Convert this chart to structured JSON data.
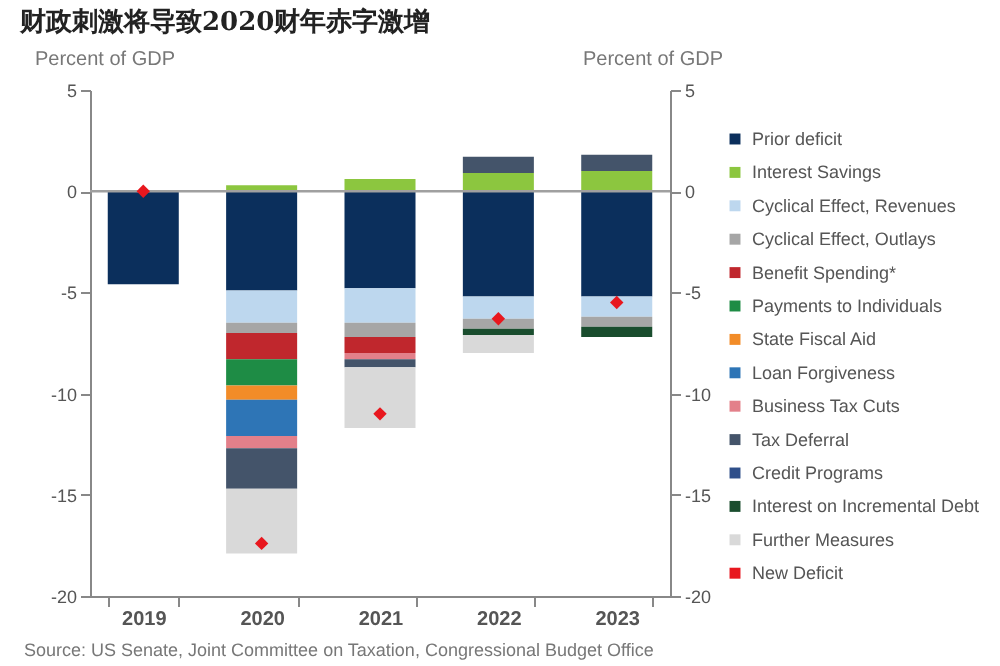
{
  "chart_data": {
    "type": "bar",
    "title": "财政刺激将导致2020财年赤字激增",
    "stacked": true,
    "categories": [
      "2019",
      "2020",
      "2021",
      "2022",
      "2023"
    ],
    "series": [
      {
        "name": "Prior deficit",
        "color": "#0b2f5c",
        "values": [
          -4.6,
          -4.9,
          -4.8,
          -5.2,
          -5.2
        ]
      },
      {
        "name": "Interest Savings",
        "color": "#8cc63f",
        "values": [
          null,
          0.3,
          0.6,
          0.9,
          1.0
        ]
      },
      {
        "name": "Cyclical Effect, Revenues",
        "color": "#bdd7ee",
        "values": [
          null,
          -1.6,
          -1.7,
          -1.1,
          -1.0
        ]
      },
      {
        "name": "Cyclical Effect, Outlays",
        "color": "#a6a6a6",
        "values": [
          null,
          -0.5,
          -0.7,
          -0.5,
          -0.5
        ]
      },
      {
        "name": "Benefit Spending*",
        "color": "#c0272d",
        "values": [
          null,
          -1.3,
          -0.8,
          null,
          null
        ]
      },
      {
        "name": "Payments to Individuals",
        "color": "#1e8c45",
        "values": [
          null,
          -1.3,
          null,
          null,
          null
        ]
      },
      {
        "name": "State Fiscal Aid",
        "color": "#f28c28",
        "values": [
          null,
          -0.7,
          null,
          null,
          null
        ]
      },
      {
        "name": "Loan Forgiveness",
        "color": "#2e75b6",
        "values": [
          null,
          -1.8,
          null,
          null,
          null
        ]
      },
      {
        "name": "Business Tax Cuts",
        "color": "#e3808a",
        "values": [
          null,
          -0.6,
          -0.3,
          null,
          null
        ]
      },
      {
        "name": "Tax Deferral",
        "color": "#44546a",
        "values": [
          null,
          -2.0,
          -0.4,
          0.8,
          0.8
        ]
      },
      {
        "name": "Credit Programs",
        "color": "#2f4f8a",
        "values": [
          null,
          null,
          null,
          null,
          null
        ]
      },
      {
        "name": "Interest on Incremental Debt",
        "color": "#1a4d2e",
        "values": [
          null,
          null,
          null,
          -0.3,
          -0.5
        ]
      },
      {
        "name": "Further Measures",
        "color": "#d9d9d9",
        "values": [
          null,
          -3.2,
          -3.0,
          -0.9,
          null
        ]
      },
      {
        "name": "New Deficit",
        "type": "scatter",
        "marker": "diamond",
        "color": "#e8171e",
        "values": [
          0,
          -17.4,
          -11.0,
          -6.3,
          -5.5
        ]
      }
    ],
    "ylabel": "Percent of GDP",
    "y2label": "Percent of GDP",
    "ylim": [
      -20,
      5
    ],
    "yticks": [
      -20,
      -15,
      -10,
      -5,
      0,
      5
    ],
    "y2lim": [
      -20,
      5
    ],
    "y2ticks": [
      -20,
      -15,
      -10,
      -5,
      0,
      5
    ],
    "ref_lines": [
      {
        "axis": "y",
        "value": 0,
        "color": "#a0a0a0"
      }
    ],
    "grid": false,
    "legend": "right",
    "annotations": [
      "Source: US Senate, Joint Committee on Taxation, Congressional Budget Office"
    ]
  }
}
